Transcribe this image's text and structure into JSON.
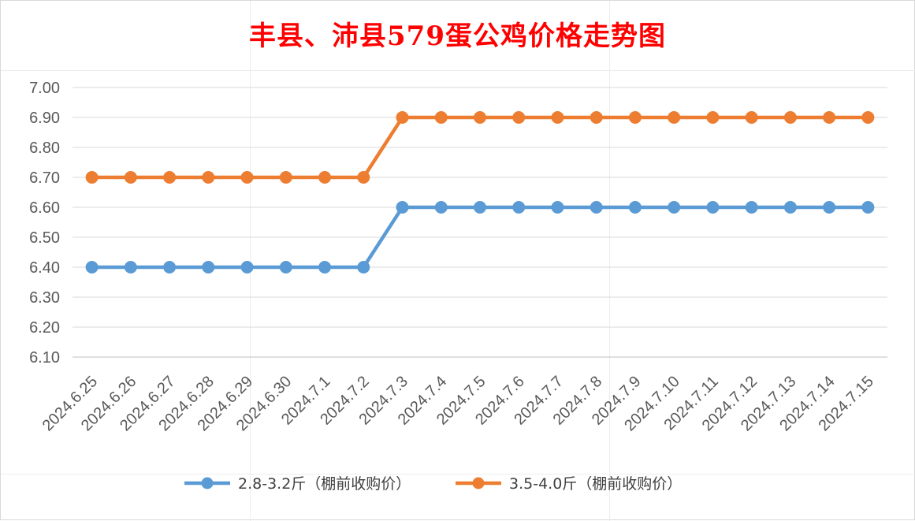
{
  "chart_data": {
    "type": "line",
    "title": "丰县、沛县579蛋公鸡价格走势图",
    "categories": [
      "2024.6.25",
      "2024.6.26",
      "2024.6.27",
      "2024.6.28",
      "2024.6.29",
      "2024.6.30",
      "2024.7.1",
      "2024.7.2",
      "2024.7.3",
      "2024.7.4",
      "2024.7.5",
      "2024.7.6",
      "2024.7.7",
      "2024.7.8",
      "2024.7.9",
      "2024.7.10",
      "2024.7.11",
      "2024.7.12",
      "2024.7.13",
      "2024.7.14",
      "2024.7.15"
    ],
    "series": [
      {
        "name": "2.8-3.2斤（棚前收购价）",
        "color": "#5b9bd5",
        "values": [
          6.4,
          6.4,
          6.4,
          6.4,
          6.4,
          6.4,
          6.4,
          6.4,
          6.6,
          6.6,
          6.6,
          6.6,
          6.6,
          6.6,
          6.6,
          6.6,
          6.6,
          6.6,
          6.6,
          6.6,
          6.6
        ]
      },
      {
        "name": "3.5-4.0斤（棚前收购价）",
        "color": "#ed7d31",
        "values": [
          6.7,
          6.7,
          6.7,
          6.7,
          6.7,
          6.7,
          6.7,
          6.7,
          6.9,
          6.9,
          6.9,
          6.9,
          6.9,
          6.9,
          6.9,
          6.9,
          6.9,
          6.9,
          6.9,
          6.9,
          6.9
        ]
      }
    ],
    "yticks": [
      "7.00",
      "6.90",
      "6.80",
      "6.70",
      "6.60",
      "6.50",
      "6.40",
      "6.30",
      "6.20",
      "6.10"
    ],
    "ylim": [
      6.1,
      7.0
    ],
    "grid": true,
    "legend_position": "bottom",
    "title_color": "#ff0000"
  }
}
